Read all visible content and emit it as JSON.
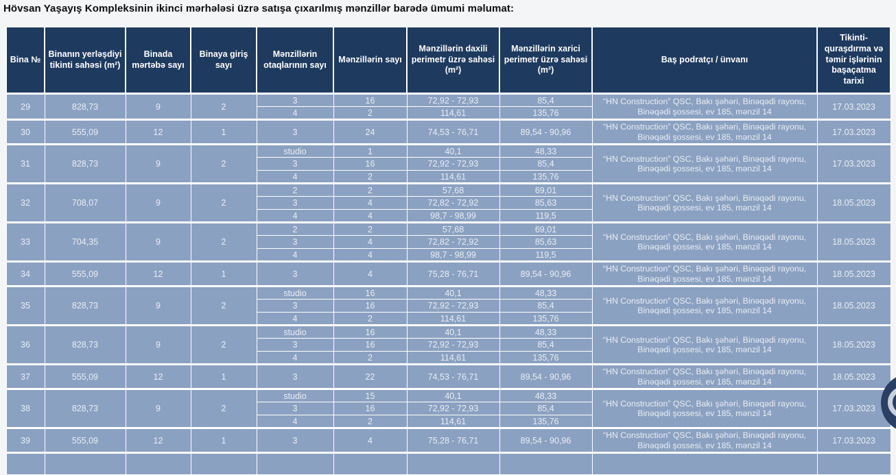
{
  "page": {
    "title": "Hövsan Yaşayış Kompleksinin ikinci mərhələsi üzrə satışa çıxarılmış mənzillər barədə ümumi məlumat:"
  },
  "colors": {
    "header_bg": "#1e3a5e",
    "row_bg": "#8ba1c1",
    "grid": "#ffffff",
    "header_text": "#ffffff",
    "row_text": "#e9edf4",
    "page_bg": "#f4f5f7",
    "title_text": "#0d0d0d",
    "logo_disc": "#2a3f63",
    "logo_ring": "#c9d1df"
  },
  "decor": {
    "cutoff_logo": "circular-logo-partially-visible-at-right-edge"
  },
  "table": {
    "columns": [
      {
        "label": "Bina №"
      },
      {
        "label": "Binanın yerləşdiyi tikinti sahəsi (m²)"
      },
      {
        "label": "Binada mərtəbə sayı"
      },
      {
        "label": "Binaya giriş sayı"
      },
      {
        "label": "Mənzillərin otaqlarının sayı"
      },
      {
        "label": "Mənzillərin sayı"
      },
      {
        "label": "Mənzillərin daxili perimetr üzrə sahəsi (m²)"
      },
      {
        "label": "Mənzillərin xarici perimetr üzrə sahəsi (m²)"
      },
      {
        "label": "Baş podratçı / ünvanı"
      },
      {
        "label": "Tikinti-quraşdırma və təmir işlərinin başaçatma tarixi"
      }
    ],
    "rows": [
      {
        "bina": "29",
        "sahe": "828,73",
        "mertebe": "9",
        "giris": "2",
        "units": [
          {
            "otaq": "3",
            "say": "16",
            "daxili": "72,92 - 72,93",
            "xarici": "85,4"
          },
          {
            "otaq": "4",
            "say": "2",
            "daxili": "114,61",
            "xarici": "135,76"
          }
        ],
        "podratci": "“HN Construction” QSC, Bakı şəhəri, Binəqədi rayonu, Binəqədi şossesi, ev 185, mənzil 14",
        "tarix": "17.03.2023"
      },
      {
        "bina": "30",
        "sahe": "555,09",
        "mertebe": "12",
        "giris": "1",
        "units": [
          {
            "otaq": "3",
            "say": "24",
            "daxili": "74,53 - 76,71",
            "xarici": "89,54 - 90,96"
          }
        ],
        "podratci": "“HN Construction” QSC, Bakı şəhəri, Binəqədi rayonu, Binəqədi şossesi, ev 185, mənzil 14",
        "tarix": "17.03.2023"
      },
      {
        "bina": "31",
        "sahe": "828,73",
        "mertebe": "9",
        "giris": "2",
        "units": [
          {
            "otaq": "studio",
            "say": "1",
            "daxili": "40,1",
            "xarici": "48,33"
          },
          {
            "otaq": "3",
            "say": "16",
            "daxili": "72,92 - 72,93",
            "xarici": "85,4"
          },
          {
            "otaq": "4",
            "say": "2",
            "daxili": "114,61",
            "xarici": "135,76"
          }
        ],
        "podratci": "“HN Construction” QSC, Bakı şəhəri, Binəqədi rayonu, Binəqədi şossesi, ev 185, mənzil 14",
        "tarix": "17.03.2023"
      },
      {
        "bina": "32",
        "sahe": "708,07",
        "mertebe": "9",
        "giris": "2",
        "units": [
          {
            "otaq": "2",
            "say": "2",
            "daxili": "57,68",
            "xarici": "69,01"
          },
          {
            "otaq": "3",
            "say": "4",
            "daxili": "72,82 - 72,92",
            "xarici": "85,63"
          },
          {
            "otaq": "4",
            "say": "4",
            "daxili": "98,7 - 98,99",
            "xarici": "119,5"
          }
        ],
        "podratci": "“HN Construction” QSC, Bakı şəhəri, Binəqədi rayonu, Binəqədi şossesi, ev 185, mənzil 14",
        "tarix": "18.05.2023"
      },
      {
        "bina": "33",
        "sahe": "704,35",
        "mertebe": "9",
        "giris": "2",
        "units": [
          {
            "otaq": "2",
            "say": "2",
            "daxili": "57,68",
            "xarici": "69,01"
          },
          {
            "otaq": "3",
            "say": "4",
            "daxili": "72,82 - 72,92",
            "xarici": "85,63"
          },
          {
            "otaq": "4",
            "say": "4",
            "daxili": "98,7 - 98,99",
            "xarici": "119,5"
          }
        ],
        "podratci": "“HN Construction” QSC, Bakı şəhəri, Binəqədi rayonu, Binəqədi şossesi, ev 185, mənzil 14",
        "tarix": "18.05.2023"
      },
      {
        "bina": "34",
        "sahe": "555,09",
        "mertebe": "12",
        "giris": "1",
        "units": [
          {
            "otaq": "3",
            "say": "4",
            "daxili": "75,28 - 76,71",
            "xarici": "89,54 - 90,96"
          }
        ],
        "podratci": "“HN Construction” QSC, Bakı şəhəri, Binəqədi rayonu, Binəqədi şossesi, ev 185, mənzil 14",
        "tarix": "18.05.2023"
      },
      {
        "bina": "35",
        "sahe": "828,73",
        "mertebe": "9",
        "giris": "2",
        "units": [
          {
            "otaq": "studio",
            "say": "16",
            "daxili": "40,1",
            "xarici": "48,33"
          },
          {
            "otaq": "3",
            "say": "16",
            "daxili": "72,92 - 72,93",
            "xarici": "85,4"
          },
          {
            "otaq": "4",
            "say": "2",
            "daxili": "114,61",
            "xarici": "135,76"
          }
        ],
        "podratci": "“HN Construction” QSC, Bakı şəhəri, Binəqədi rayonu, Binəqədi şossesi, ev 185, mənzil 14",
        "tarix": "18.05.2023"
      },
      {
        "bina": "36",
        "sahe": "828,73",
        "mertebe": "9",
        "giris": "2",
        "units": [
          {
            "otaq": "studio",
            "say": "16",
            "daxili": "40,1",
            "xarici": "48,33"
          },
          {
            "otaq": "3",
            "say": "16",
            "daxili": "72,92 - 72,93",
            "xarici": "85,4"
          },
          {
            "otaq": "4",
            "say": "2",
            "daxili": "114,61",
            "xarici": "135,76"
          }
        ],
        "podratci": "“HN Construction” QSC, Bakı şəhəri, Binəqədi rayonu, Binəqədi şossesi, ev 185, mənzil 14",
        "tarix": "18.05.2023"
      },
      {
        "bina": "37",
        "sahe": "555,09",
        "mertebe": "12",
        "giris": "1",
        "units": [
          {
            "otaq": "3",
            "say": "22",
            "daxili": "74,53 - 76,71",
            "xarici": "89,54 - 90,96"
          }
        ],
        "podratci": "“HN Construction” QSC, Bakı şəhəri, Binəqədi rayonu, Binəqədi şossesi, ev 185, mənzil 14",
        "tarix": "18.05.2023"
      },
      {
        "bina": "38",
        "sahe": "828,73",
        "mertebe": "9",
        "giris": "2",
        "units": [
          {
            "otaq": "studio",
            "say": "15",
            "daxili": "40,1",
            "xarici": "48,33"
          },
          {
            "otaq": "3",
            "say": "16",
            "daxili": "72,92 - 72,93",
            "xarici": "85,4"
          },
          {
            "otaq": "4",
            "say": "2",
            "daxili": "114,61",
            "xarici": "135,76"
          }
        ],
        "podratci": "“HN Construction” QSC, Bakı şəhəri, Binəqədi rayonu, Binəqədi şossesi, ev 185, mənzil 14",
        "tarix": "17.03.2023"
      },
      {
        "bina": "39",
        "sahe": "555,09",
        "mertebe": "12",
        "giris": "1",
        "units": [
          {
            "otaq": "3",
            "say": "4",
            "daxili": "75,28 - 76,71",
            "xarici": "89,54 - 90,96"
          }
        ],
        "podratci": "“HN Construction” QSC, Bakı şəhəri, Binəqədi rayonu, Binəqədi şossesi, ev 185, mənzil 14",
        "tarix": "17.03.2023"
      }
    ],
    "partial_next_row_visible": true
  }
}
